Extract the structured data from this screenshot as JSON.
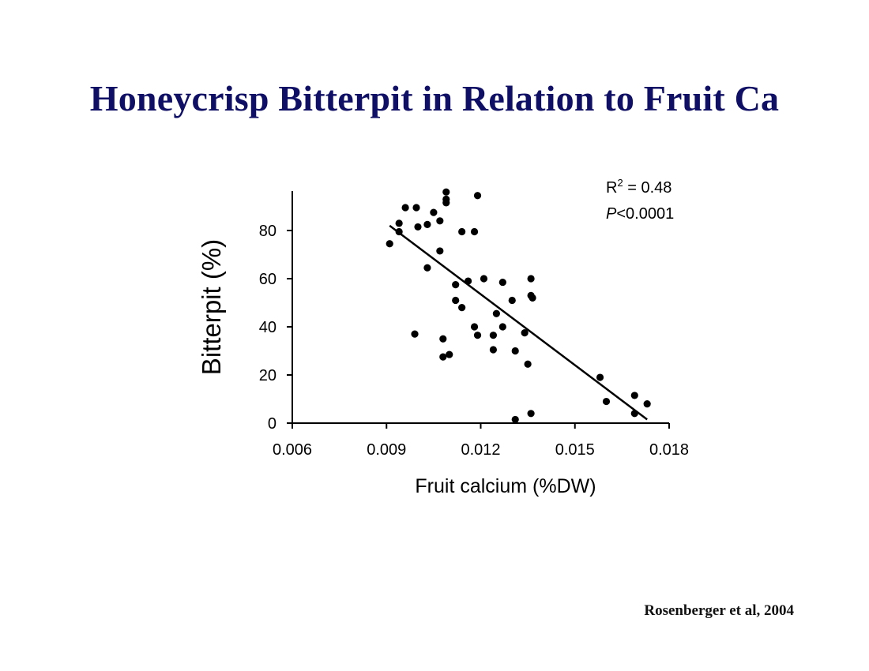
{
  "slide": {
    "title": "Honeycrisp Bitterpit in Relation to Fruit Ca",
    "citation": "Rosenberger et al, 2004"
  },
  "colors": {
    "title": "#0f0f66",
    "points": "#000000",
    "axis": "#000000"
  },
  "chart_data": {
    "type": "scatter",
    "xlabel": "Fruit calcium (%DW)",
    "ylabel": "Bitterpit (%)",
    "xlim": [
      0.006,
      0.018
    ],
    "ylim": [
      0,
      95
    ],
    "x_ticks": [
      "0.006",
      "0.009",
      "0.012",
      "0.015",
      "0.018"
    ],
    "y_ticks": [
      "0",
      "20",
      "40",
      "60",
      "80"
    ],
    "annotation": {
      "r2_label": "R",
      "r2_sup": "2",
      "r2_value": " = 0.48",
      "p_italic": "P",
      "p_value": "<0.0001"
    },
    "trendline": {
      "x": [
        0.0091,
        0.0173
      ],
      "y": [
        82,
        1.5
      ]
    },
    "points": [
      {
        "x": 0.0091,
        "y": 74.5
      },
      {
        "x": 0.0094,
        "y": 79.5
      },
      {
        "x": 0.0094,
        "y": 83
      },
      {
        "x": 0.0096,
        "y": 89.5
      },
      {
        "x": 0.0099,
        "y": 37
      },
      {
        "x": 0.00995,
        "y": 89.5
      },
      {
        "x": 0.01,
        "y": 81.5
      },
      {
        "x": 0.0103,
        "y": 64.5
      },
      {
        "x": 0.0103,
        "y": 82.5
      },
      {
        "x": 0.0105,
        "y": 87.5
      },
      {
        "x": 0.0107,
        "y": 71.5
      },
      {
        "x": 0.0107,
        "y": 84
      },
      {
        "x": 0.0108,
        "y": 35
      },
      {
        "x": 0.0108,
        "y": 27.5
      },
      {
        "x": 0.0109,
        "y": 96
      },
      {
        "x": 0.0109,
        "y": 93
      },
      {
        "x": 0.0109,
        "y": 91.5
      },
      {
        "x": 0.011,
        "y": 28.5
      },
      {
        "x": 0.0112,
        "y": 57.5
      },
      {
        "x": 0.0112,
        "y": 51
      },
      {
        "x": 0.0114,
        "y": 48
      },
      {
        "x": 0.0114,
        "y": 79.5
      },
      {
        "x": 0.0116,
        "y": 59
      },
      {
        "x": 0.0118,
        "y": 79.5
      },
      {
        "x": 0.0118,
        "y": 40
      },
      {
        "x": 0.0119,
        "y": 94.5
      },
      {
        "x": 0.0119,
        "y": 36.5
      },
      {
        "x": 0.0121,
        "y": 60
      },
      {
        "x": 0.0124,
        "y": 36.5
      },
      {
        "x": 0.0124,
        "y": 30.5
      },
      {
        "x": 0.0125,
        "y": 45.5
      },
      {
        "x": 0.0127,
        "y": 58.5
      },
      {
        "x": 0.0127,
        "y": 40
      },
      {
        "x": 0.013,
        "y": 51
      },
      {
        "x": 0.0131,
        "y": 30
      },
      {
        "x": 0.0131,
        "y": 1.5
      },
      {
        "x": 0.0134,
        "y": 37.5
      },
      {
        "x": 0.0135,
        "y": 24.5
      },
      {
        "x": 0.0136,
        "y": 60
      },
      {
        "x": 0.0136,
        "y": 53
      },
      {
        "x": 0.0136,
        "y": 4
      },
      {
        "x": 0.01365,
        "y": 52
      },
      {
        "x": 0.0158,
        "y": 19
      },
      {
        "x": 0.016,
        "y": 9
      },
      {
        "x": 0.0169,
        "y": 11.5
      },
      {
        "x": 0.0169,
        "y": 4
      },
      {
        "x": 0.0173,
        "y": 8
      }
    ]
  }
}
